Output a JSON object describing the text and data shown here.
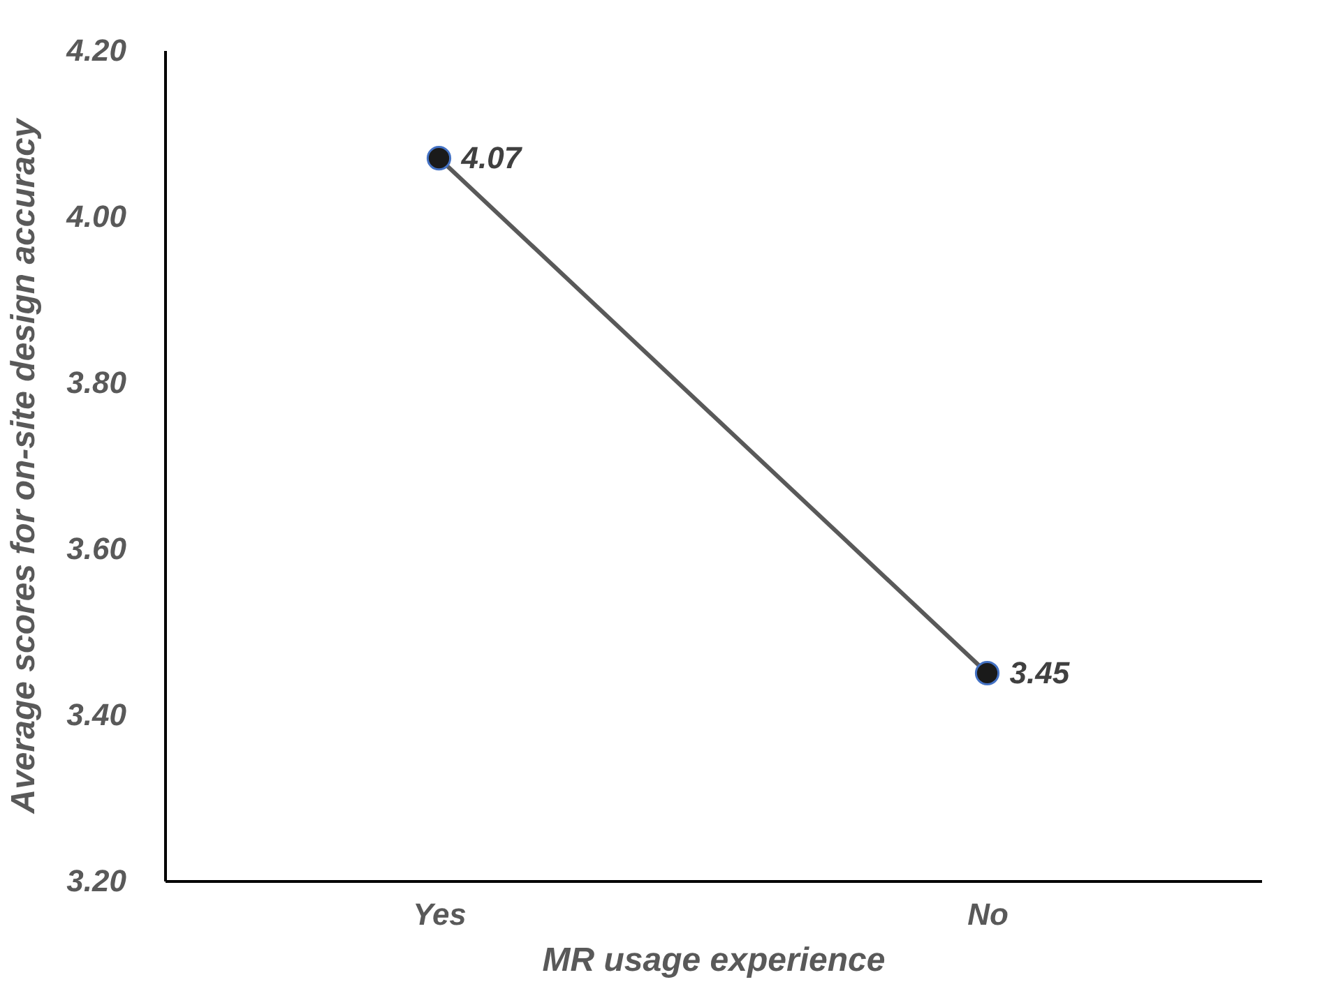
{
  "chart_data": {
    "type": "line",
    "xlabel": "MR usage experience",
    "ylabel": "Average scores for on-site design accuracy",
    "categories": [
      "Yes",
      "No"
    ],
    "series": [
      {
        "color": "#595959",
        "values": [
          4.07,
          3.45
        ]
      }
    ],
    "ylim": [
      3.2,
      4.2
    ],
    "yticks": [
      {
        "value": 3.2,
        "label": "3.20"
      },
      {
        "value": 3.4,
        "label": "3.40"
      },
      {
        "value": 3.6,
        "label": "3.60"
      },
      {
        "value": 3.8,
        "label": "3.80"
      },
      {
        "value": 4.0,
        "label": "4.00"
      },
      {
        "value": 4.2,
        "label": "4.20"
      }
    ],
    "data_labels": true,
    "marker": "circle",
    "grid": false,
    "line_style": "solid"
  }
}
